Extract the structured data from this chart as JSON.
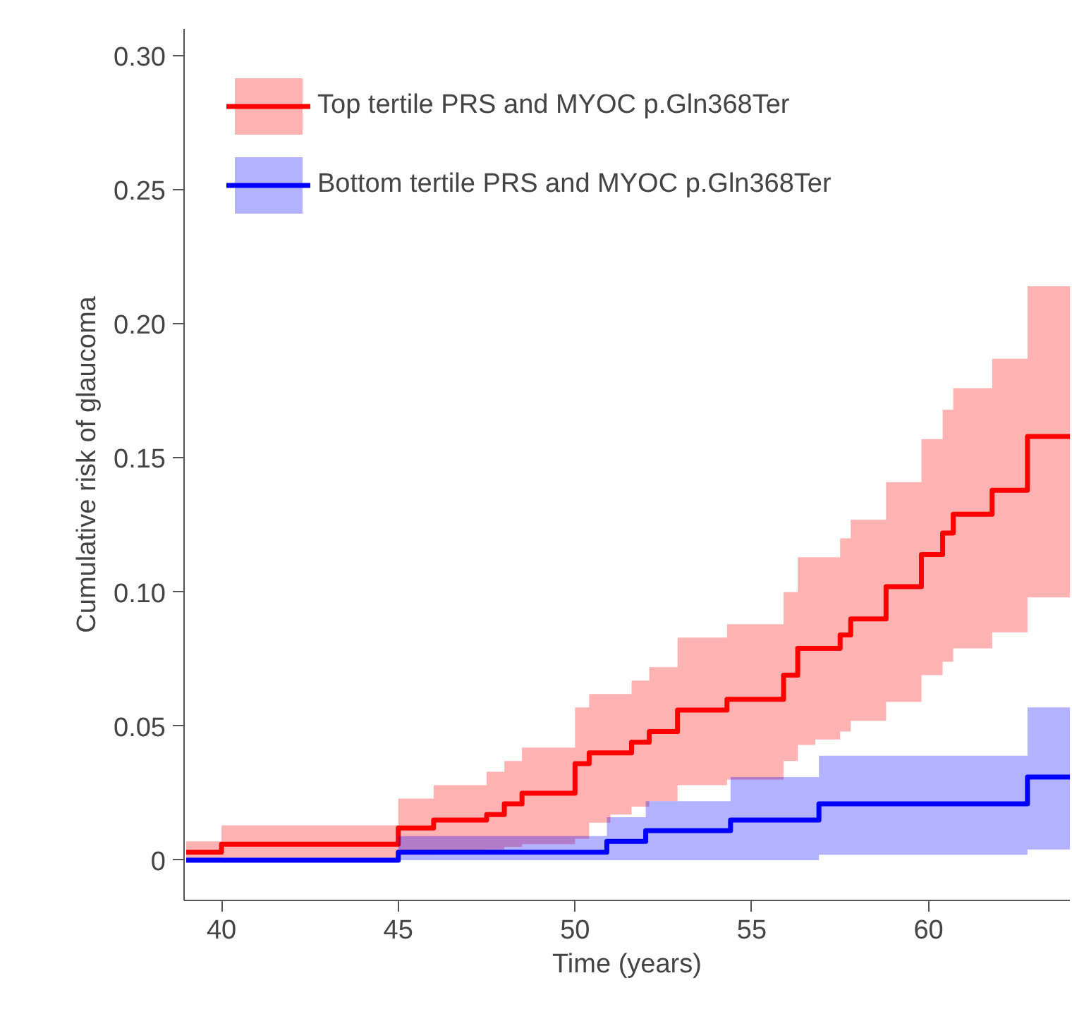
{
  "chart_data": {
    "type": "step",
    "xlabel": "Time (years)",
    "ylabel": "Cumulative risk of glaucoma",
    "xlim": [
      38.94,
      64
    ],
    "ylim": [
      -0.015,
      0.31
    ],
    "xticks": [
      40,
      45,
      50,
      55,
      60
    ],
    "yticks": [
      {
        "value": 0,
        "label": "0"
      },
      {
        "value": 0.05,
        "label": "0.05"
      },
      {
        "value": 0.1,
        "label": "0.10"
      },
      {
        "value": 0.15,
        "label": "0.15"
      },
      {
        "value": 0.2,
        "label": "0.20"
      },
      {
        "value": 0.25,
        "label": "0.25"
      },
      {
        "value": 0.3,
        "label": "0.30"
      }
    ],
    "grid": false,
    "legend": "top left",
    "line_style": "solid",
    "marker": "none",
    "series": [
      {
        "name": "Top tertile PRS and MYOC p.Gln368Ter",
        "color": "#ff0000",
        "x": [
          39,
          40,
          45,
          46,
          47.5,
          48,
          48.5,
          50,
          50.4,
          51,
          51.6,
          52.1,
          52.9,
          54.3,
          55.9,
          56.3,
          56.8,
          57.5,
          57.8,
          58.8,
          59.8,
          60.4,
          60.7,
          61.8,
          62.8,
          64
        ],
        "values": [
          0.003,
          0.006,
          0.012,
          0.015,
          0.017,
          0.021,
          0.025,
          0.036,
          0.04,
          0.04,
          0.044,
          0.048,
          0.056,
          0.06,
          0.069,
          0.079,
          0.079,
          0.084,
          0.09,
          0.102,
          0.114,
          0.122,
          0.129,
          0.138,
          0.158,
          0.158
        ],
        "lower": [
          0.0,
          0.001,
          0.002,
          0.003,
          0.004,
          0.005,
          0.006,
          0.008,
          0.014,
          0.017,
          0.02,
          0.022,
          0.028,
          0.03,
          0.037,
          0.043,
          0.045,
          0.048,
          0.052,
          0.059,
          0.069,
          0.074,
          0.079,
          0.085,
          0.098,
          0.098
        ],
        "upper": [
          0.007,
          0.013,
          0.023,
          0.028,
          0.033,
          0.037,
          0.042,
          0.057,
          0.062,
          0.062,
          0.067,
          0.072,
          0.083,
          0.088,
          0.1,
          0.113,
          0.113,
          0.12,
          0.127,
          0.141,
          0.157,
          0.168,
          0.176,
          0.187,
          0.214,
          0.214
        ]
      },
      {
        "name": "Bottom tertile PRS and MYOC p.Gln368Ter",
        "color": "#0000ff",
        "x": [
          39,
          45,
          50.9,
          52,
          54.4,
          56.9,
          62.8,
          64
        ],
        "values": [
          0.0,
          0.003,
          0.007,
          0.011,
          0.015,
          0.021,
          0.031,
          0.031
        ],
        "lower": [
          0.0,
          0.0,
          0.0,
          0.0,
          0.0,
          0.002,
          0.004,
          0.004
        ],
        "upper": [
          0.001,
          0.009,
          0.016,
          0.022,
          0.031,
          0.039,
          0.057,
          0.057
        ]
      }
    ]
  }
}
